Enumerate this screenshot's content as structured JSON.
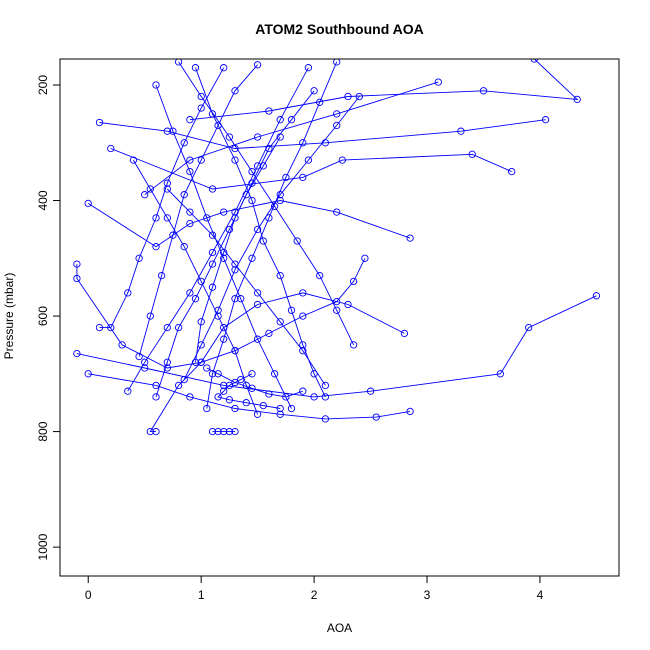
{
  "chart_data": {
    "type": "scatter",
    "title": "ATOM2 Southbound AOA",
    "xlabel": "AOA",
    "ylabel": "Pressure (mbar)",
    "xlim": [
      -0.25,
      4.7
    ],
    "ylim": [
      1050,
      155
    ],
    "y_reversed": true,
    "x_ticks": [
      0,
      1,
      2,
      3,
      4
    ],
    "y_ticks": [
      200,
      400,
      600,
      800,
      1000
    ],
    "grid": false,
    "legend": "none",
    "color": "#0000ff",
    "marker": "open-circle",
    "connected": true,
    "series": [
      {
        "x": [
          3.95,
          4.33,
          3.5,
          2.3,
          1.6,
          0.9
        ],
        "y": [
          155,
          225,
          210,
          220,
          245,
          260
        ]
      },
      {
        "x": [
          4.05,
          3.3,
          2.1,
          1.3,
          0.7,
          0.1
        ],
        "y": [
          260,
          280,
          300,
          310,
          280,
          265
        ]
      },
      {
        "x": [
          3.75,
          3.4,
          2.25,
          1.9,
          1.1,
          0.2
        ],
        "y": [
          350,
          320,
          330,
          360,
          380,
          310
        ]
      },
      {
        "x": [
          3.1,
          2.2,
          1.5,
          0.9,
          0.5
        ],
        "y": [
          195,
          250,
          290,
          330,
          390
        ]
      },
      {
        "x": [
          2.85,
          2.2,
          1.7,
          1.2,
          0.9,
          0.6,
          0.0
        ],
        "y": [
          465,
          420,
          400,
          420,
          440,
          480,
          405
        ]
      },
      {
        "x": [
          4.5,
          3.9,
          3.65,
          2.5,
          2.0,
          1.2,
          0.5,
          -0.1
        ],
        "y": [
          565,
          620,
          700,
          730,
          740,
          720,
          690,
          665
        ]
      },
      {
        "x": [
          2.85,
          2.55,
          2.1,
          1.7,
          1.3,
          0.9,
          0.6,
          0.0
        ],
        "y": [
          765,
          775,
          778,
          770,
          760,
          740,
          720,
          700
        ]
      },
      {
        "x": [
          2.45,
          2.35,
          2.2,
          1.9,
          1.6,
          1.3,
          1.0,
          0.7,
          0.3,
          -0.1,
          -0.1
        ],
        "y": [
          500,
          540,
          575,
          600,
          630,
          660,
          680,
          690,
          650,
          535,
          510
        ]
      },
      {
        "x": [
          2.8,
          2.3,
          1.9,
          1.5,
          1.2,
          1.0,
          0.8,
          0.55,
          0.6
        ],
        "y": [
          630,
          580,
          560,
          580,
          620,
          680,
          720,
          800,
          800
        ]
      },
      {
        "x": [
          1.3,
          1.25,
          1.2,
          1.15,
          1.1
        ],
        "y": [
          800,
          800,
          800,
          800,
          800
        ]
      },
      {
        "x": [
          1.95,
          1.7,
          1.5,
          1.3,
          1.1,
          0.9,
          0.7,
          0.5,
          0.35
        ],
        "y": [
          170,
          260,
          340,
          420,
          490,
          560,
          620,
          680,
          730
        ]
      },
      {
        "x": [
          1.2,
          1.0,
          0.85,
          0.7,
          0.6,
          0.45,
          0.35,
          0.2,
          0.1
        ],
        "y": [
          170,
          240,
          300,
          370,
          430,
          500,
          560,
          620,
          620
        ]
      },
      {
        "x": [
          2.2,
          2.05,
          1.9,
          1.75,
          1.6,
          1.45,
          1.3,
          1.2,
          1.1,
          1.05
        ],
        "y": [
          160,
          230,
          300,
          360,
          430,
          500,
          570,
          640,
          700,
          760
        ]
      },
      {
        "x": [
          0.95,
          1.1,
          1.3,
          1.45,
          1.55,
          1.7,
          1.8,
          1.9,
          2.0,
          2.1
        ],
        "y": [
          170,
          250,
          330,
          400,
          470,
          530,
          590,
          650,
          700,
          740
        ]
      },
      {
        "x": [
          0.6,
          0.75,
          0.9,
          1.05,
          1.2,
          1.35,
          1.5,
          1.65,
          1.8
        ],
        "y": [
          200,
          280,
          350,
          430,
          500,
          570,
          640,
          700,
          760
        ]
      },
      {
        "x": [
          2.4,
          2.2,
          1.95,
          1.7,
          1.5,
          1.3,
          1.15,
          1.0,
          0.85
        ],
        "y": [
          220,
          270,
          330,
          390,
          450,
          520,
          590,
          650,
          710
        ]
      },
      {
        "x": [
          1.5,
          1.3,
          1.15,
          1.0,
          0.85,
          0.75,
          0.65,
          0.55,
          0.45
        ],
        "y": [
          165,
          210,
          270,
          330,
          390,
          460,
          530,
          600,
          670
        ]
      },
      {
        "x": [
          0.8,
          1.0,
          1.25,
          1.45,
          1.65,
          1.85,
          2.05,
          2.2,
          2.35
        ],
        "y": [
          160,
          220,
          290,
          350,
          410,
          470,
          530,
          590,
          650
        ]
      },
      {
        "x": [
          2.0,
          1.8,
          1.6,
          1.45,
          1.3,
          1.2,
          1.1,
          1.0,
          0.95
        ],
        "y": [
          210,
          260,
          310,
          370,
          430,
          490,
          550,
          610,
          680
        ]
      },
      {
        "x": [
          0.4,
          0.55,
          0.7,
          0.85,
          1.0,
          1.15,
          1.3,
          1.4,
          1.5
        ],
        "y": [
          330,
          380,
          430,
          480,
          540,
          600,
          660,
          720,
          770
        ]
      },
      {
        "x": [
          1.7,
          1.55,
          1.4,
          1.25,
          1.1,
          0.95,
          0.8,
          0.7,
          0.6
        ],
        "y": [
          290,
          340,
          390,
          450,
          510,
          570,
          620,
          680,
          740
        ]
      },
      {
        "x": [
          0.7,
          0.9,
          1.1,
          1.3,
          1.5,
          1.7,
          1.9,
          2.1
        ],
        "y": [
          380,
          420,
          460,
          510,
          560,
          610,
          660,
          720
        ]
      },
      {
        "x": [
          1.45,
          1.35,
          1.25,
          1.2,
          1.15,
          1.25,
          1.4,
          1.55,
          1.7
        ],
        "y": [
          700,
          710,
          720,
          730,
          740,
          745,
          750,
          755,
          760
        ]
      },
      {
        "x": [
          1.05,
          1.15,
          1.3,
          1.45,
          1.6,
          1.75,
          1.9
        ],
        "y": [
          690,
          700,
          715,
          725,
          735,
          740,
          730
        ]
      }
    ]
  }
}
